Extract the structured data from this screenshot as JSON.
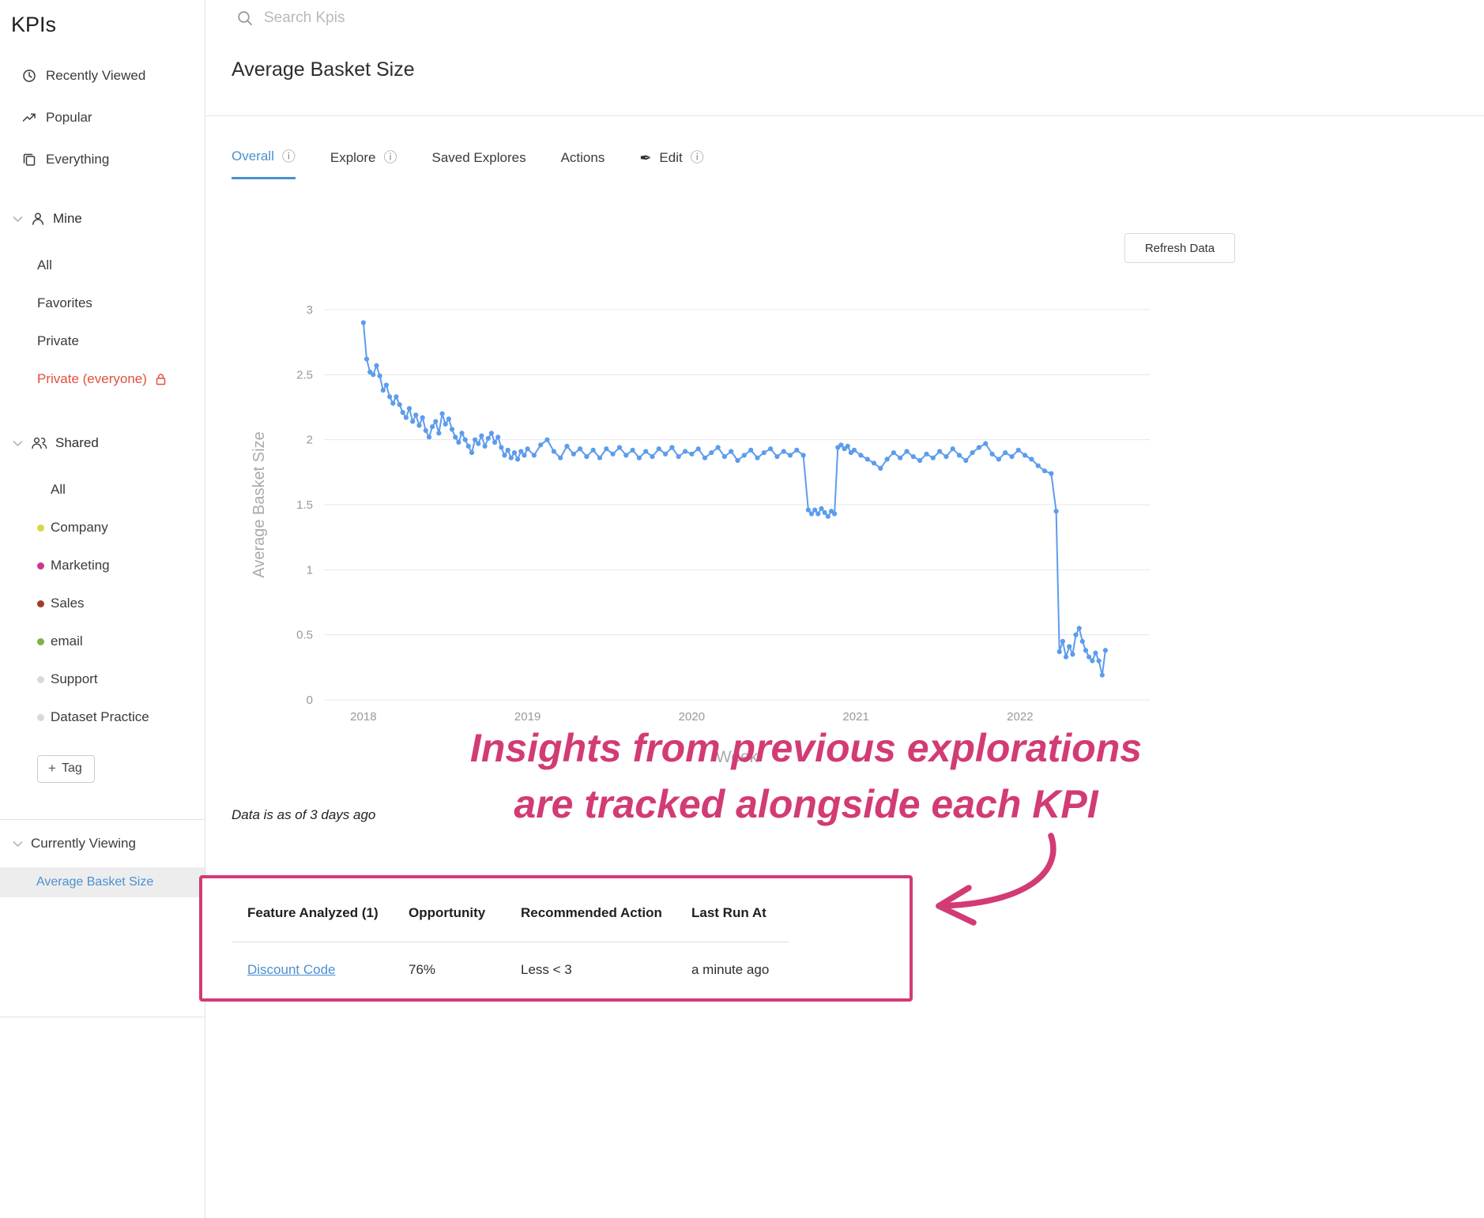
{
  "colors": {
    "accent_blue": "#4a90d2",
    "line_blue": "#5d9cec",
    "annotation_pink": "#d23b75",
    "danger_red": "#e0513e"
  },
  "sidebar": {
    "title": "KPIs",
    "top_items": [
      {
        "label": "Recently Viewed",
        "icon": "clock-icon"
      },
      {
        "label": "Popular",
        "icon": "trending-up-icon"
      },
      {
        "label": "Everything",
        "icon": "clipboard-icon"
      }
    ],
    "mine": {
      "label": "Mine",
      "items": [
        {
          "label": "All"
        },
        {
          "label": "Favorites"
        },
        {
          "label": "Private"
        },
        {
          "label": "Private (everyone)",
          "locked": true
        }
      ]
    },
    "shared": {
      "label": "Shared",
      "items": [
        {
          "label": "All",
          "dot": null
        },
        {
          "label": "Company",
          "dot": "#d6d943"
        },
        {
          "label": "Marketing",
          "dot": "#c9388d"
        },
        {
          "label": "Sales",
          "dot": "#a33b2c"
        },
        {
          "label": "email",
          "dot": "#7cb342"
        },
        {
          "label": "Support",
          "dot": "#d9d9d9"
        },
        {
          "label": "Dataset Practice",
          "dot": "#d9d9d9"
        }
      ]
    },
    "tag_button": "Tag",
    "currently_viewing": {
      "label": "Currently Viewing",
      "selected": "Average Basket Size"
    }
  },
  "header": {
    "search_placeholder": "Search Kpis",
    "title": "Average Basket Size"
  },
  "tabs": [
    {
      "label": "Overall",
      "active": true,
      "has_info": true
    },
    {
      "label": "Explore",
      "active": false,
      "has_info": true
    },
    {
      "label": "Saved Explores",
      "active": false,
      "has_info": false
    },
    {
      "label": "Actions",
      "active": false,
      "has_info": false
    },
    {
      "label": "Edit",
      "active": false,
      "has_info": true,
      "icon": "pencil-icon"
    }
  ],
  "toolbar": {
    "refresh_label": "Refresh Data"
  },
  "chart_note": "Data is as of 3 days ago",
  "annotation": {
    "line1": "Insights from previous explorations",
    "line2": "are tracked alongside each KPI",
    "color": "#d23b75"
  },
  "insights_table": {
    "headers": [
      "Feature Analyzed (1)",
      "Opportunity",
      "Recommended Action",
      "Last Run At"
    ],
    "rows": [
      {
        "feature": "Discount Code",
        "opportunity": "76%",
        "action": "Less < 3",
        "last_run": "a minute ago"
      }
    ]
  },
  "chart_data": {
    "type": "line",
    "title": "",
    "xlabel": "Week",
    "ylabel": "Average Basket Size",
    "ylim": [
      0,
      3
    ],
    "yticks": [
      0,
      0.5,
      1,
      1.5,
      2,
      2.5,
      3
    ],
    "xticks": [
      2018,
      2019,
      2020,
      2021,
      2022
    ],
    "xlim": [
      2017.76,
      2022.79
    ],
    "grid": true,
    "legend": "none",
    "line_color": "#5d9cec",
    "points": [
      [
        2018.0,
        2.9
      ],
      [
        2018.02,
        2.62
      ],
      [
        2018.04,
        2.52
      ],
      [
        2018.06,
        2.5
      ],
      [
        2018.08,
        2.57
      ],
      [
        2018.1,
        2.49
      ],
      [
        2018.12,
        2.38
      ],
      [
        2018.14,
        2.42
      ],
      [
        2018.16,
        2.33
      ],
      [
        2018.18,
        2.28
      ],
      [
        2018.2,
        2.33
      ],
      [
        2018.22,
        2.27
      ],
      [
        2018.24,
        2.21
      ],
      [
        2018.26,
        2.17
      ],
      [
        2018.28,
        2.24
      ],
      [
        2018.3,
        2.14
      ],
      [
        2018.32,
        2.19
      ],
      [
        2018.34,
        2.11
      ],
      [
        2018.36,
        2.17
      ],
      [
        2018.38,
        2.07
      ],
      [
        2018.4,
        2.02
      ],
      [
        2018.42,
        2.1
      ],
      [
        2018.44,
        2.14
      ],
      [
        2018.46,
        2.05
      ],
      [
        2018.48,
        2.2
      ],
      [
        2018.5,
        2.12
      ],
      [
        2018.52,
        2.16
      ],
      [
        2018.54,
        2.08
      ],
      [
        2018.56,
        2.02
      ],
      [
        2018.58,
        1.98
      ],
      [
        2018.6,
        2.05
      ],
      [
        2018.62,
        2.0
      ],
      [
        2018.64,
        1.95
      ],
      [
        2018.66,
        1.9
      ],
      [
        2018.68,
        2.0
      ],
      [
        2018.7,
        1.97
      ],
      [
        2018.72,
        2.03
      ],
      [
        2018.74,
        1.95
      ],
      [
        2018.76,
        2.01
      ],
      [
        2018.78,
        2.05
      ],
      [
        2018.8,
        1.98
      ],
      [
        2018.82,
        2.02
      ],
      [
        2018.84,
        1.94
      ],
      [
        2018.86,
        1.88
      ],
      [
        2018.88,
        1.92
      ],
      [
        2018.9,
        1.86
      ],
      [
        2018.92,
        1.9
      ],
      [
        2018.94,
        1.85
      ],
      [
        2018.96,
        1.91
      ],
      [
        2018.98,
        1.88
      ],
      [
        2019.0,
        1.93
      ],
      [
        2019.04,
        1.88
      ],
      [
        2019.08,
        1.96
      ],
      [
        2019.12,
        2.0
      ],
      [
        2019.16,
        1.91
      ],
      [
        2019.2,
        1.86
      ],
      [
        2019.24,
        1.95
      ],
      [
        2019.28,
        1.89
      ],
      [
        2019.32,
        1.93
      ],
      [
        2019.36,
        1.87
      ],
      [
        2019.4,
        1.92
      ],
      [
        2019.44,
        1.86
      ],
      [
        2019.48,
        1.93
      ],
      [
        2019.52,
        1.89
      ],
      [
        2019.56,
        1.94
      ],
      [
        2019.6,
        1.88
      ],
      [
        2019.64,
        1.92
      ],
      [
        2019.68,
        1.86
      ],
      [
        2019.72,
        1.91
      ],
      [
        2019.76,
        1.87
      ],
      [
        2019.8,
        1.93
      ],
      [
        2019.84,
        1.89
      ],
      [
        2019.88,
        1.94
      ],
      [
        2019.92,
        1.87
      ],
      [
        2019.96,
        1.91
      ],
      [
        2020.0,
        1.89
      ],
      [
        2020.04,
        1.93
      ],
      [
        2020.08,
        1.86
      ],
      [
        2020.12,
        1.9
      ],
      [
        2020.16,
        1.94
      ],
      [
        2020.2,
        1.87
      ],
      [
        2020.24,
        1.91
      ],
      [
        2020.28,
        1.84
      ],
      [
        2020.32,
        1.88
      ],
      [
        2020.36,
        1.92
      ],
      [
        2020.4,
        1.86
      ],
      [
        2020.44,
        1.9
      ],
      [
        2020.48,
        1.93
      ],
      [
        2020.52,
        1.87
      ],
      [
        2020.56,
        1.91
      ],
      [
        2020.6,
        1.88
      ],
      [
        2020.64,
        1.92
      ],
      [
        2020.68,
        1.88
      ],
      [
        2020.71,
        1.46
      ],
      [
        2020.73,
        1.43
      ],
      [
        2020.75,
        1.46
      ],
      [
        2020.77,
        1.43
      ],
      [
        2020.79,
        1.47
      ],
      [
        2020.81,
        1.44
      ],
      [
        2020.83,
        1.41
      ],
      [
        2020.85,
        1.45
      ],
      [
        2020.87,
        1.43
      ],
      [
        2020.89,
        1.94
      ],
      [
        2020.91,
        1.96
      ],
      [
        2020.93,
        1.93
      ],
      [
        2020.95,
        1.95
      ],
      [
        2020.97,
        1.9
      ],
      [
        2020.99,
        1.92
      ],
      [
        2021.03,
        1.88
      ],
      [
        2021.07,
        1.85
      ],
      [
        2021.11,
        1.82
      ],
      [
        2021.15,
        1.78
      ],
      [
        2021.19,
        1.85
      ],
      [
        2021.23,
        1.9
      ],
      [
        2021.27,
        1.86
      ],
      [
        2021.31,
        1.91
      ],
      [
        2021.35,
        1.87
      ],
      [
        2021.39,
        1.84
      ],
      [
        2021.43,
        1.89
      ],
      [
        2021.47,
        1.86
      ],
      [
        2021.51,
        1.91
      ],
      [
        2021.55,
        1.87
      ],
      [
        2021.59,
        1.93
      ],
      [
        2021.63,
        1.88
      ],
      [
        2021.67,
        1.84
      ],
      [
        2021.71,
        1.9
      ],
      [
        2021.75,
        1.94
      ],
      [
        2021.79,
        1.97
      ],
      [
        2021.83,
        1.89
      ],
      [
        2021.87,
        1.85
      ],
      [
        2021.91,
        1.9
      ],
      [
        2021.95,
        1.87
      ],
      [
        2021.99,
        1.92
      ],
      [
        2022.03,
        1.88
      ],
      [
        2022.07,
        1.85
      ],
      [
        2022.11,
        1.8
      ],
      [
        2022.15,
        1.76
      ],
      [
        2022.19,
        1.74
      ],
      [
        2022.22,
        1.45
      ],
      [
        2022.24,
        0.37
      ],
      [
        2022.26,
        0.45
      ],
      [
        2022.28,
        0.33
      ],
      [
        2022.3,
        0.41
      ],
      [
        2022.32,
        0.35
      ],
      [
        2022.34,
        0.5
      ],
      [
        2022.36,
        0.55
      ],
      [
        2022.38,
        0.45
      ],
      [
        2022.4,
        0.38
      ],
      [
        2022.42,
        0.33
      ],
      [
        2022.44,
        0.3
      ],
      [
        2022.46,
        0.36
      ],
      [
        2022.48,
        0.3
      ],
      [
        2022.5,
        0.19
      ],
      [
        2022.52,
        0.38
      ]
    ]
  }
}
